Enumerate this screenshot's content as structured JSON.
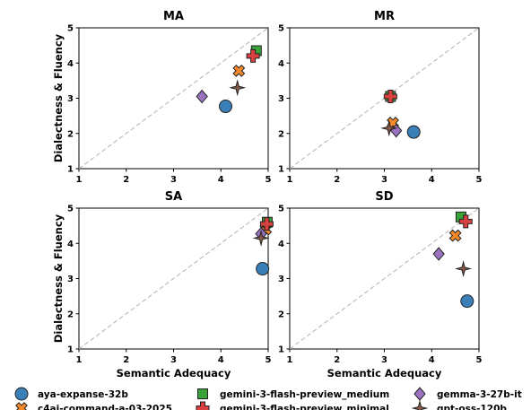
{
  "figure": {
    "ylabel": "Dialectness & Fluency",
    "xlabel": "Semantic Adequacy"
  },
  "series_styles": [
    {
      "name": "aya-expanse-32b",
      "marker": "circle",
      "color": "#3a7fb8"
    },
    {
      "name": "c4ai-command-a-03-2025",
      "marker": "x",
      "color": "#f5892a"
    },
    {
      "name": "gemini-3-flash-preview_medium",
      "marker": "square",
      "color": "#3aa23a"
    },
    {
      "name": "gemini-3-flash-preview_minimal",
      "marker": "plus",
      "color": "#d94040"
    },
    {
      "name": "gemma-3-27b-it",
      "marker": "diamond",
      "color": "#9a72c0"
    },
    {
      "name": "gpt-oss-120b",
      "marker": "star4",
      "color": "#8c5a4a"
    }
  ],
  "chart_data": [
    {
      "type": "scatter",
      "title": "MA",
      "xlim": [
        1,
        5
      ],
      "ylim": [
        1,
        5
      ],
      "xticks": [
        "1",
        "2",
        "3",
        "4",
        "5"
      ],
      "yticks": [
        "1",
        "2",
        "3",
        "4",
        "5"
      ],
      "diagonal": true,
      "points": [
        {
          "series": "aya-expanse-32b",
          "x": 4.1,
          "y": 2.77
        },
        {
          "series": "c4ai-command-a-03-2025",
          "x": 4.38,
          "y": 3.78
        },
        {
          "series": "gemini-3-flash-preview_medium",
          "x": 4.75,
          "y": 4.35
        },
        {
          "series": "gemini-3-flash-preview_minimal",
          "x": 4.68,
          "y": 4.2
        },
        {
          "series": "gemma-3-27b-it",
          "x": 3.6,
          "y": 3.05
        },
        {
          "series": "gpt-oss-120b",
          "x": 4.35,
          "y": 3.3
        }
      ]
    },
    {
      "type": "scatter",
      "title": "MR",
      "xlim": [
        1,
        5
      ],
      "ylim": [
        1,
        5
      ],
      "xticks": [
        "1",
        "2",
        "3",
        "4",
        "5"
      ],
      "yticks": [
        "1",
        "2",
        "3",
        "4",
        "5"
      ],
      "diagonal": true,
      "points": [
        {
          "series": "aya-expanse-32b",
          "x": 3.62,
          "y": 2.04
        },
        {
          "series": "c4ai-command-a-03-2025",
          "x": 3.18,
          "y": 2.3
        },
        {
          "series": "gemini-3-flash-preview_medium",
          "x": 3.13,
          "y": 3.05
        },
        {
          "series": "gemini-3-flash-preview_minimal",
          "x": 3.13,
          "y": 3.05
        },
        {
          "series": "gemma-3-27b-it",
          "x": 3.25,
          "y": 2.08
        },
        {
          "series": "gpt-oss-120b",
          "x": 3.1,
          "y": 2.15
        }
      ]
    },
    {
      "type": "scatter",
      "title": "SA",
      "xlim": [
        1,
        5
      ],
      "ylim": [
        1,
        5
      ],
      "xticks": [
        "1",
        "2",
        "3",
        "4",
        "5"
      ],
      "yticks": [
        "1",
        "2",
        "3",
        "4",
        "5"
      ],
      "diagonal": true,
      "points": [
        {
          "series": "aya-expanse-32b",
          "x": 4.88,
          "y": 3.28
        },
        {
          "series": "c4ai-command-a-03-2025",
          "x": 4.95,
          "y": 4.4
        },
        {
          "series": "gemini-3-flash-preview_medium",
          "x": 4.98,
          "y": 4.6
        },
        {
          "series": "gemini-3-flash-preview_minimal",
          "x": 4.97,
          "y": 4.55
        },
        {
          "series": "gemma-3-27b-it",
          "x": 4.85,
          "y": 4.27
        },
        {
          "series": "gpt-oss-120b",
          "x": 4.85,
          "y": 4.15
        }
      ]
    },
    {
      "type": "scatter",
      "title": "SD",
      "xlim": [
        1,
        5
      ],
      "ylim": [
        1,
        5
      ],
      "xticks": [
        "1",
        "2",
        "3",
        "4",
        "5"
      ],
      "yticks": [
        "1",
        "2",
        "3",
        "4",
        "5"
      ],
      "diagonal": true,
      "points": [
        {
          "series": "aya-expanse-32b",
          "x": 4.75,
          "y": 2.36
        },
        {
          "series": "c4ai-command-a-03-2025",
          "x": 4.5,
          "y": 4.22
        },
        {
          "series": "gemini-3-flash-preview_medium",
          "x": 4.62,
          "y": 4.75
        },
        {
          "series": "gemini-3-flash-preview_minimal",
          "x": 4.72,
          "y": 4.62
        },
        {
          "series": "gemma-3-27b-it",
          "x": 4.15,
          "y": 3.7
        },
        {
          "series": "gpt-oss-120b",
          "x": 4.67,
          "y": 3.28
        }
      ]
    }
  ]
}
